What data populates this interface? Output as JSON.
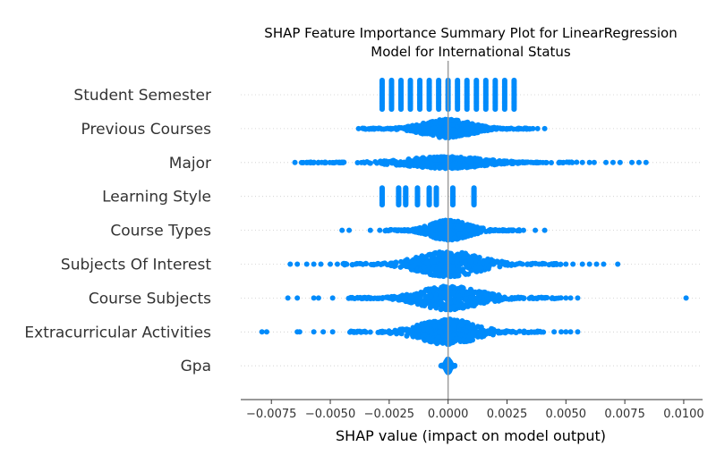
{
  "chart_data": {
    "type": "scatter",
    "subtype": "shap-beeswarm",
    "title_line1": "SHAP Feature Importance Summary Plot for LinearRegression",
    "title_line2": "Model for International Status",
    "xlabel": "SHAP value (impact on model output)",
    "xlim": [
      -0.0088,
      0.0108
    ],
    "xticks": [
      -0.0075,
      -0.005,
      -0.0025,
      0.0,
      0.0025,
      0.005,
      0.0075,
      0.01
    ],
    "xtick_labels": [
      "−0.0075",
      "−0.0050",
      "−0.0025",
      "0.0000",
      "0.0025",
      "0.0050",
      "0.0075",
      "0.0100"
    ],
    "point_color": "#008bfb",
    "zero_line_color": "#999999",
    "grid_color": "#cccccc",
    "features": [
      {
        "name": "Student Semester",
        "min": -0.0028,
        "max": 0.0029,
        "core": 0.0,
        "height": 0.85,
        "discrete": [
          -0.0028,
          -0.0024,
          -0.002,
          -0.0016,
          -0.0012,
          -0.0008,
          -0.0004,
          0.0,
          0.0004,
          0.0008,
          0.0012,
          0.0016,
          0.002,
          0.0024,
          0.0028
        ],
        "outliers": []
      },
      {
        "name": "Previous Courses",
        "min": -0.0037,
        "max": 0.0035,
        "core": 0.0012,
        "height": 0.55,
        "discrete": [],
        "outliers": [
          -0.0038,
          -0.0036,
          0.0036,
          0.0038,
          0.0041
        ]
      },
      {
        "name": "Major",
        "min": -0.0063,
        "max": 0.0055,
        "core": 0.0018,
        "height": 0.35,
        "discrete": [],
        "outliers": [
          -0.0065,
          -0.006,
          -0.0058,
          -0.0055,
          -0.0052,
          0.0057,
          0.006,
          0.0062,
          0.0067,
          0.007,
          0.0073,
          0.0078,
          0.0081,
          0.0084
        ]
      },
      {
        "name": "Learning Style",
        "min": -0.0028,
        "max": 0.0011,
        "core": 0.0,
        "height": 0.5,
        "discrete": [
          -0.0028,
          -0.0021,
          -0.0018,
          -0.0013,
          -0.0008,
          -0.0005,
          0.0002,
          0.0011
        ],
        "outliers": []
      },
      {
        "name": "Course Types",
        "min": -0.0027,
        "max": 0.0031,
        "core": 0.001,
        "height": 0.6,
        "discrete": [],
        "outliers": [
          -0.0045,
          -0.0042,
          -0.0033,
          -0.0029,
          0.0032,
          0.0037,
          0.0041
        ]
      },
      {
        "name": "Subjects Of Interest",
        "min": -0.0045,
        "max": 0.0048,
        "core": 0.0012,
        "height": 0.75,
        "discrete": [],
        "outliers": [
          -0.0067,
          -0.0064,
          -0.006,
          -0.0057,
          -0.0054,
          -0.005,
          -0.0047,
          0.005,
          0.0053,
          0.0057,
          0.006,
          0.0063,
          0.0066,
          0.0072
        ]
      },
      {
        "name": "Course Subjects",
        "min": -0.0043,
        "max": 0.0048,
        "core": 0.0015,
        "height": 0.7,
        "discrete": [],
        "outliers": [
          -0.0068,
          -0.0064,
          -0.0057,
          -0.0055,
          -0.0049,
          0.005,
          0.0052,
          0.0055,
          0.0101
        ]
      },
      {
        "name": "Extracurricular Activities",
        "min": -0.0043,
        "max": 0.0041,
        "core": 0.0012,
        "height": 0.75,
        "discrete": [],
        "outliers": [
          -0.0079,
          -0.0077,
          -0.0064,
          -0.0063,
          -0.0057,
          -0.0053,
          -0.0049,
          0.0045,
          0.0048,
          0.005,
          0.0052,
          0.0055
        ]
      },
      {
        "name": "Gpa",
        "min": -0.0003,
        "max": 0.0003,
        "core": 0.00012,
        "height": 0.4,
        "discrete": [],
        "outliers": []
      }
    ]
  }
}
